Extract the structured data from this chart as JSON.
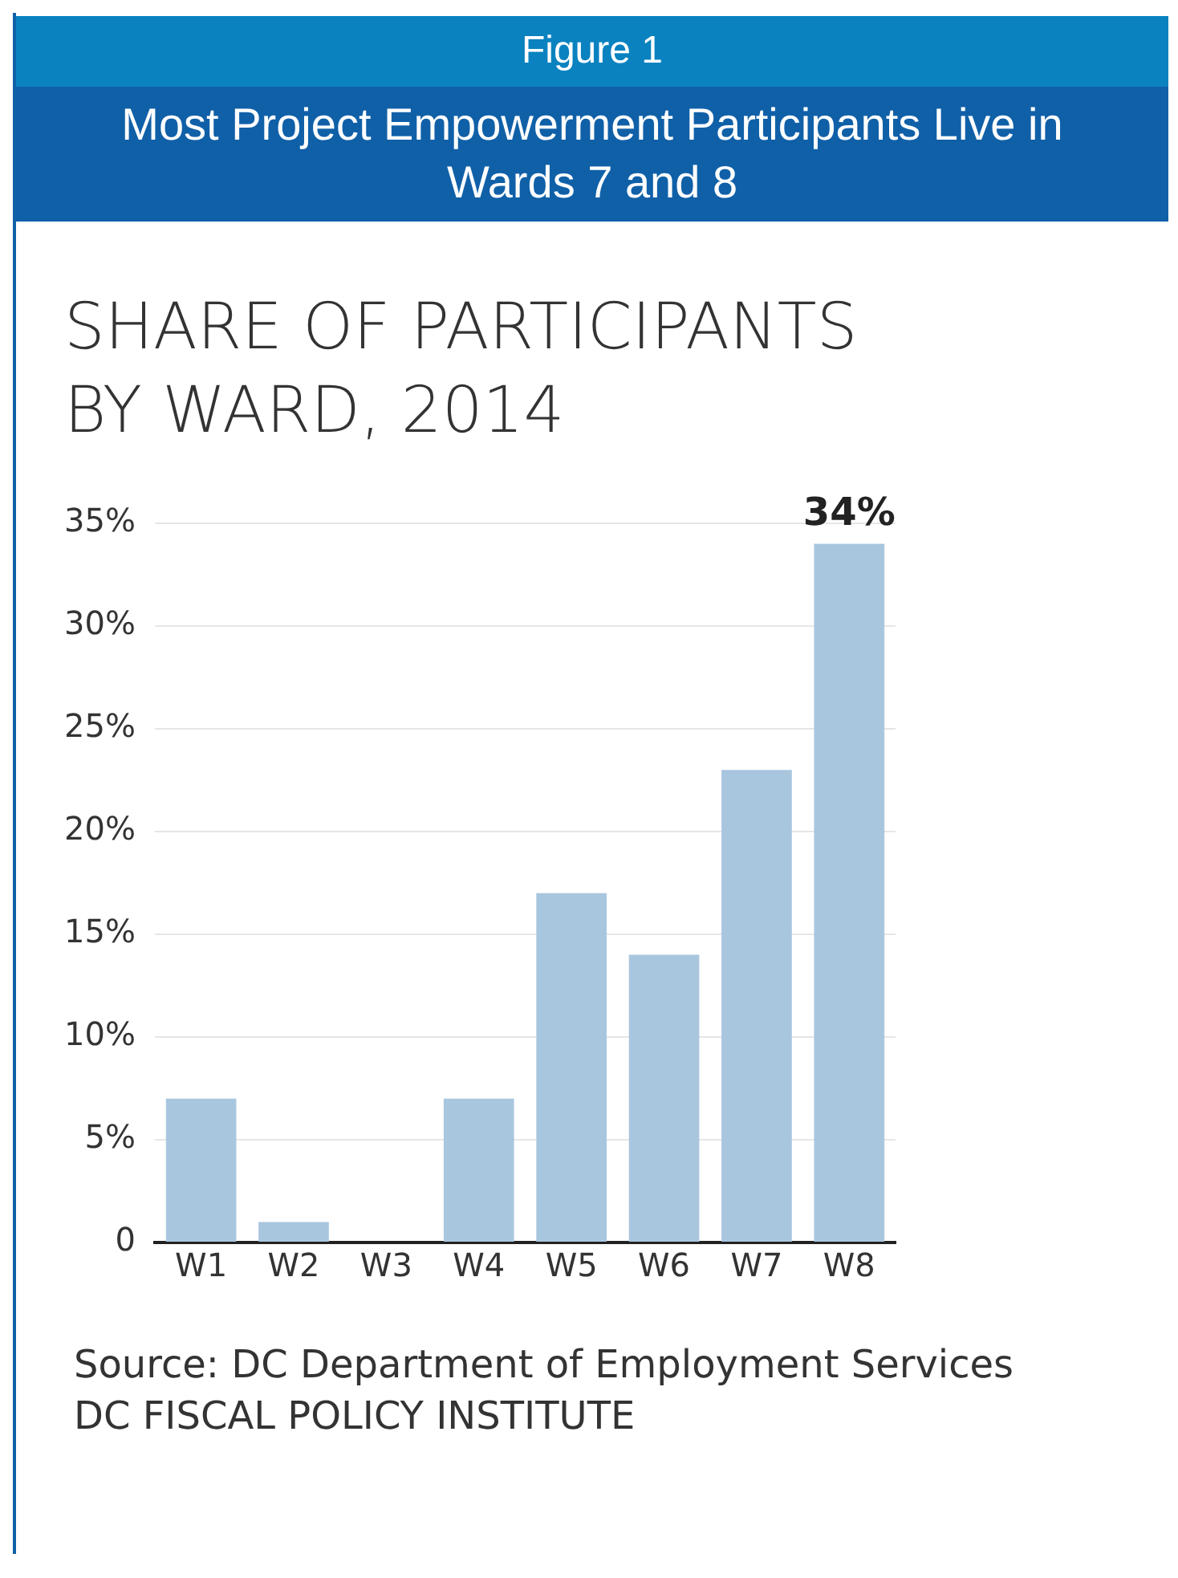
{
  "chart_data": {
    "type": "bar",
    "annotations": [
      "Figure 1",
      "Source: DC  Department of Employment Services",
      "DC FISCAL POLICY INSTITUTE"
    ],
    "title": "Most Project Empowerment Participants Live in Wards 7 and 8",
    "subtitle": "SHARE OF PARTICIPANTS BY WARD, 2014",
    "categories": [
      "W1",
      "W2",
      "W3",
      "W4",
      "W5",
      "W6",
      "W7",
      "W8"
    ],
    "values": [
      7,
      1,
      0,
      7,
      17,
      14,
      23,
      34
    ],
    "value_labels": [
      null,
      null,
      null,
      null,
      null,
      null,
      null,
      "34%"
    ],
    "color": "#a9c6df",
    "ylim": [
      0,
      35
    ],
    "yticks": [
      0,
      {
        "value": 5,
        "label": "5%"
      },
      {
        "value": 10,
        "label": "10%"
      },
      {
        "value": 15,
        "label": "15%"
      },
      {
        "value": 20,
        "label": "20%"
      },
      {
        "value": 25,
        "label": "25%"
      },
      {
        "value": 30,
        "label": "30%"
      },
      {
        "value": 35,
        "label": "35%"
      }
    ],
    "grid": "y",
    "legend": false
  }
}
